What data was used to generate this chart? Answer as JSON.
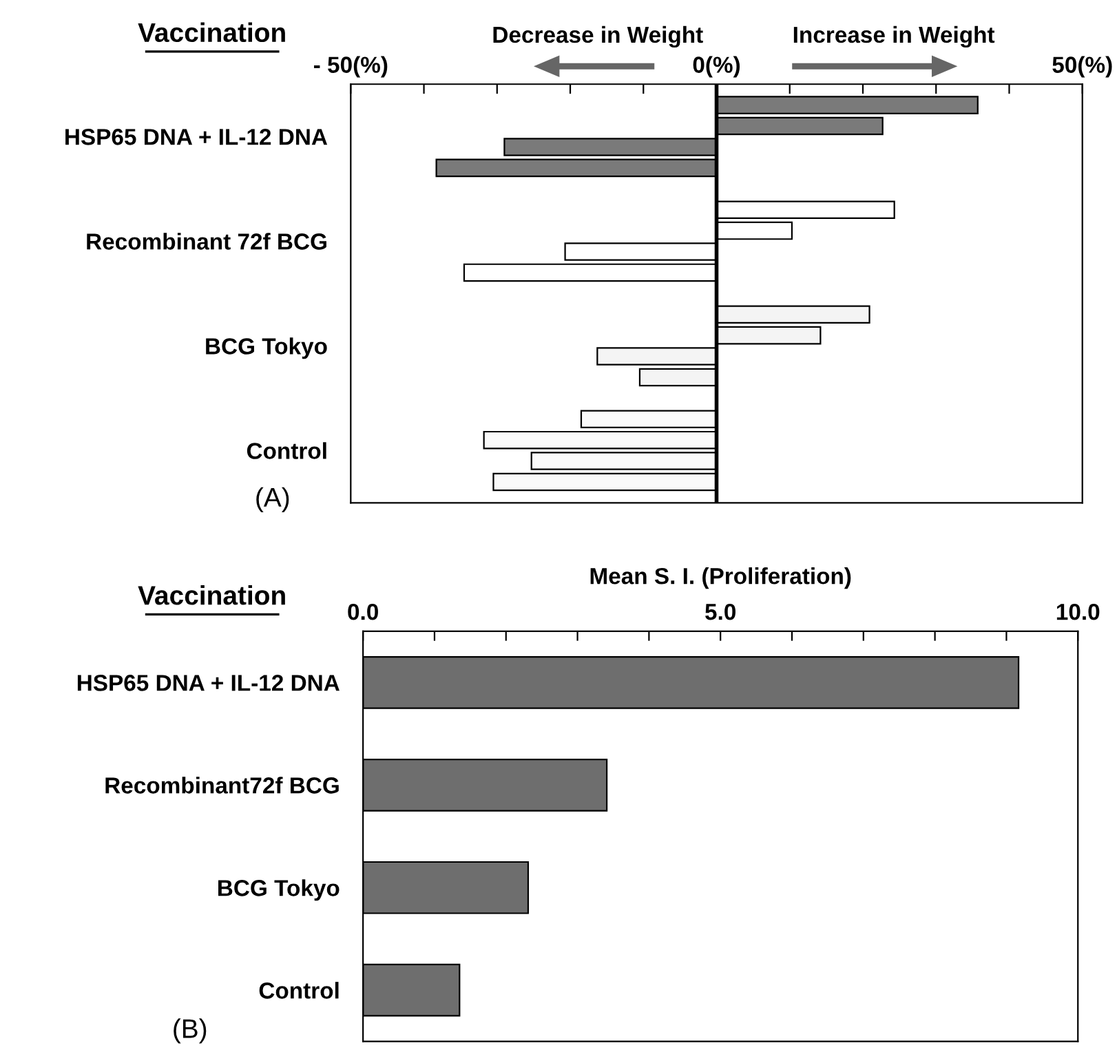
{
  "chart_data": [
    {
      "type": "bar",
      "orientation": "horizontal",
      "ylabel": "Vaccination",
      "categories": [
        "HSP65 DNA + IL-12 DNA",
        "Recombinant 72f BCG",
        "BCG Tokyo",
        "Control"
      ],
      "series": [
        {
          "colors": [
            "#7a7a7a",
            "#ffffff",
            "#f4f4f4",
            "#fafafa"
          ],
          "values": [
            35.7,
            24.3,
            20.9,
            -18.5
          ]
        },
        {
          "colors": [
            "#7a7a7a",
            "#ffffff",
            "#f4f4f4",
            "#fafafa"
          ],
          "values": [
            22.7,
            10.3,
            14.2,
            -31.8
          ]
        },
        {
          "colors": [
            "#7a7a7a",
            "#ffffff",
            "#f4f4f4",
            "#fafafa"
          ],
          "values": [
            -29.0,
            -20.7,
            -16.3,
            -25.3
          ]
        },
        {
          "colors": [
            "#7a7a7a",
            "#ffffff",
            "#f4f4f4",
            "#fafafa"
          ],
          "values": [
            -38.3,
            -34.5,
            -10.5,
            -30.5
          ]
        }
      ],
      "xlim": [
        -50,
        50
      ],
      "xticks": [
        {
          "value": -50,
          "label": "- 50(%)"
        },
        {
          "value": -40,
          "label": null
        },
        {
          "value": -30,
          "label": null
        },
        {
          "value": -20,
          "label": null
        },
        {
          "value": -10,
          "label": null
        },
        {
          "value": 0,
          "label": "0(%)"
        },
        {
          "value": 10,
          "label": null
        },
        {
          "value": 20,
          "label": null
        },
        {
          "value": 30,
          "label": null
        },
        {
          "value": 40,
          "label": null
        },
        {
          "value": 50,
          "label": "50(%)"
        }
      ],
      "ref_lines": [
        {
          "axis": "x",
          "value": 0,
          "color": "#000000"
        }
      ],
      "annotations": [
        "Decrease in Weight",
        "Increase in Weight",
        "(A)"
      ],
      "grid": false,
      "legend": false
    },
    {
      "type": "bar",
      "orientation": "horizontal",
      "ylabel": "Vaccination",
      "xlabel": "Mean S. I. (Proliferation)",
      "categories": [
        "HSP65 DNA + IL-12 DNA",
        "Recombinant72f BCG",
        "BCG Tokyo",
        "Control"
      ],
      "values": [
        9.17,
        3.41,
        2.31,
        1.35
      ],
      "color": "#6e6e6e",
      "xlim": [
        0,
        10
      ],
      "xticks": [
        {
          "value": 0,
          "label": "0.0"
        },
        {
          "value": 1,
          "label": null
        },
        {
          "value": 2,
          "label": null
        },
        {
          "value": 3,
          "label": null
        },
        {
          "value": 4,
          "label": null
        },
        {
          "value": 5,
          "label": "5.0"
        },
        {
          "value": 6,
          "label": null
        },
        {
          "value": 7,
          "label": null
        },
        {
          "value": 8,
          "label": null
        },
        {
          "value": 9,
          "label": null
        },
        {
          "value": 10,
          "label": "10.0"
        }
      ],
      "annotations": [
        "(B)"
      ],
      "grid": false,
      "legend": false
    }
  ]
}
